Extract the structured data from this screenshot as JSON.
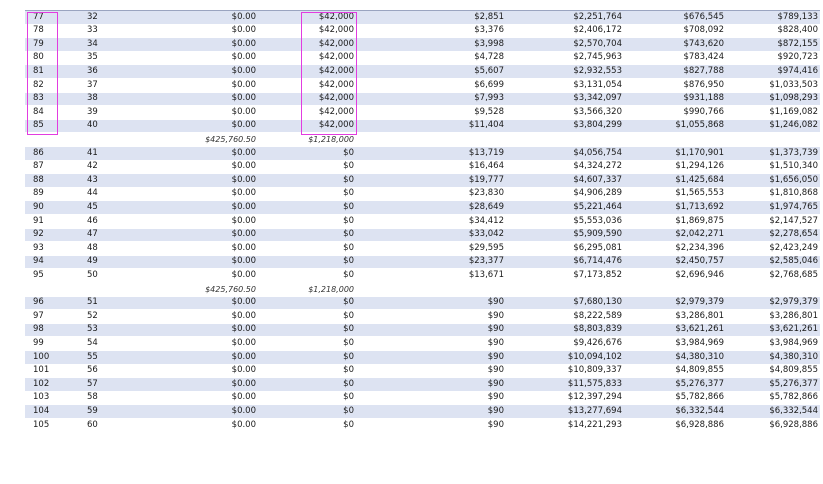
{
  "blocks": [
    {
      "rows": [
        [
          "77",
          "32",
          "$0.00",
          "$42,000",
          "$2,851",
          "$2,251,764",
          "$676,545",
          "$789,133"
        ],
        [
          "78",
          "33",
          "$0.00",
          "$42,000",
          "$3,376",
          "$2,406,172",
          "$708,092",
          "$828,400"
        ],
        [
          "79",
          "34",
          "$0.00",
          "$42,000",
          "$3,998",
          "$2,570,704",
          "$743,620",
          "$872,155"
        ],
        [
          "80",
          "35",
          "$0.00",
          "$42,000",
          "$4,728",
          "$2,745,963",
          "$783,424",
          "$920,723"
        ],
        [
          "81",
          "36",
          "$0.00",
          "$42,000",
          "$5,607",
          "$2,932,553",
          "$827,788",
          "$974,416"
        ],
        [
          "82",
          "37",
          "$0.00",
          "$42,000",
          "$6,699",
          "$3,131,054",
          "$876,950",
          "$1,033,503"
        ],
        [
          "83",
          "38",
          "$0.00",
          "$42,000",
          "$7,993",
          "$3,342,097",
          "$931,188",
          "$1,098,293"
        ],
        [
          "84",
          "39",
          "$0.00",
          "$42,000",
          "$9,528",
          "$3,566,320",
          "$990,766",
          "$1,169,082"
        ],
        [
          "85",
          "40",
          "$0.00",
          "$42,000",
          "$11,404",
          "$3,804,299",
          "$1,055,868",
          "$1,246,082"
        ]
      ],
      "subtotal": {
        "a": "$425,760.50",
        "b": "$1,218,000"
      }
    },
    {
      "rows": [
        [
          "86",
          "41",
          "$0.00",
          "$0",
          "$13,719",
          "$4,056,754",
          "$1,170,901",
          "$1,373,739"
        ],
        [
          "87",
          "42",
          "$0.00",
          "$0",
          "$16,464",
          "$4,324,272",
          "$1,294,126",
          "$1,510,340"
        ],
        [
          "88",
          "43",
          "$0.00",
          "$0",
          "$19,777",
          "$4,607,337",
          "$1,425,684",
          "$1,656,050"
        ],
        [
          "89",
          "44",
          "$0.00",
          "$0",
          "$23,830",
          "$4,906,289",
          "$1,565,553",
          "$1,810,868"
        ],
        [
          "90",
          "45",
          "$0.00",
          "$0",
          "$28,649",
          "$5,221,464",
          "$1,713,692",
          "$1,974,765"
        ],
        [
          "91",
          "46",
          "$0.00",
          "$0",
          "$34,412",
          "$5,553,036",
          "$1,869,875",
          "$2,147,527"
        ],
        [
          "92",
          "47",
          "$0.00",
          "$0",
          "$33,042",
          "$5,909,590",
          "$2,042,271",
          "$2,278,654"
        ],
        [
          "93",
          "48",
          "$0.00",
          "$0",
          "$29,595",
          "$6,295,081",
          "$2,234,396",
          "$2,423,249"
        ],
        [
          "94",
          "49",
          "$0.00",
          "$0",
          "$23,377",
          "$6,714,476",
          "$2,450,757",
          "$2,585,046"
        ],
        [
          "95",
          "50",
          "$0.00",
          "$0",
          "$13,671",
          "$7,173,852",
          "$2,696,946",
          "$2,768,685"
        ]
      ],
      "subtotal": {
        "a": "$425,760.50",
        "b": "$1,218,000"
      }
    },
    {
      "rows": [
        [
          "96",
          "51",
          "$0.00",
          "$0",
          "$90",
          "$7,680,130",
          "$2,979,379",
          "$2,979,379"
        ],
        [
          "97",
          "52",
          "$0.00",
          "$0",
          "$90",
          "$8,222,589",
          "$3,286,801",
          "$3,286,801"
        ],
        [
          "98",
          "53",
          "$0.00",
          "$0",
          "$90",
          "$8,803,839",
          "$3,621,261",
          "$3,621,261"
        ],
        [
          "99",
          "54",
          "$0.00",
          "$0",
          "$90",
          "$9,426,676",
          "$3,984,969",
          "$3,984,969"
        ],
        [
          "100",
          "55",
          "$0.00",
          "$0",
          "$90",
          "$10,094,102",
          "$4,380,310",
          "$4,380,310"
        ],
        [
          "101",
          "56",
          "$0.00",
          "$0",
          "$90",
          "$10,809,337",
          "$4,809,855",
          "$4,809,855"
        ],
        [
          "102",
          "57",
          "$0.00",
          "$0",
          "$90",
          "$11,575,833",
          "$5,276,377",
          "$5,276,377"
        ],
        [
          "103",
          "58",
          "$0.00",
          "$0",
          "$90",
          "$12,397,294",
          "$5,782,866",
          "$5,782,866"
        ],
        [
          "104",
          "59",
          "$0.00",
          "$0",
          "$90",
          "$13,277,694",
          "$6,332,544",
          "$6,332,544"
        ],
        [
          "105",
          "60",
          "$0.00",
          "$0",
          "$90",
          "$14,221,293",
          "$6,928,886",
          "$6,928,886"
        ]
      ]
    }
  ],
  "colors": {
    "row_shade": "#dde3f2",
    "highlight_box": "#e23ce0"
  }
}
